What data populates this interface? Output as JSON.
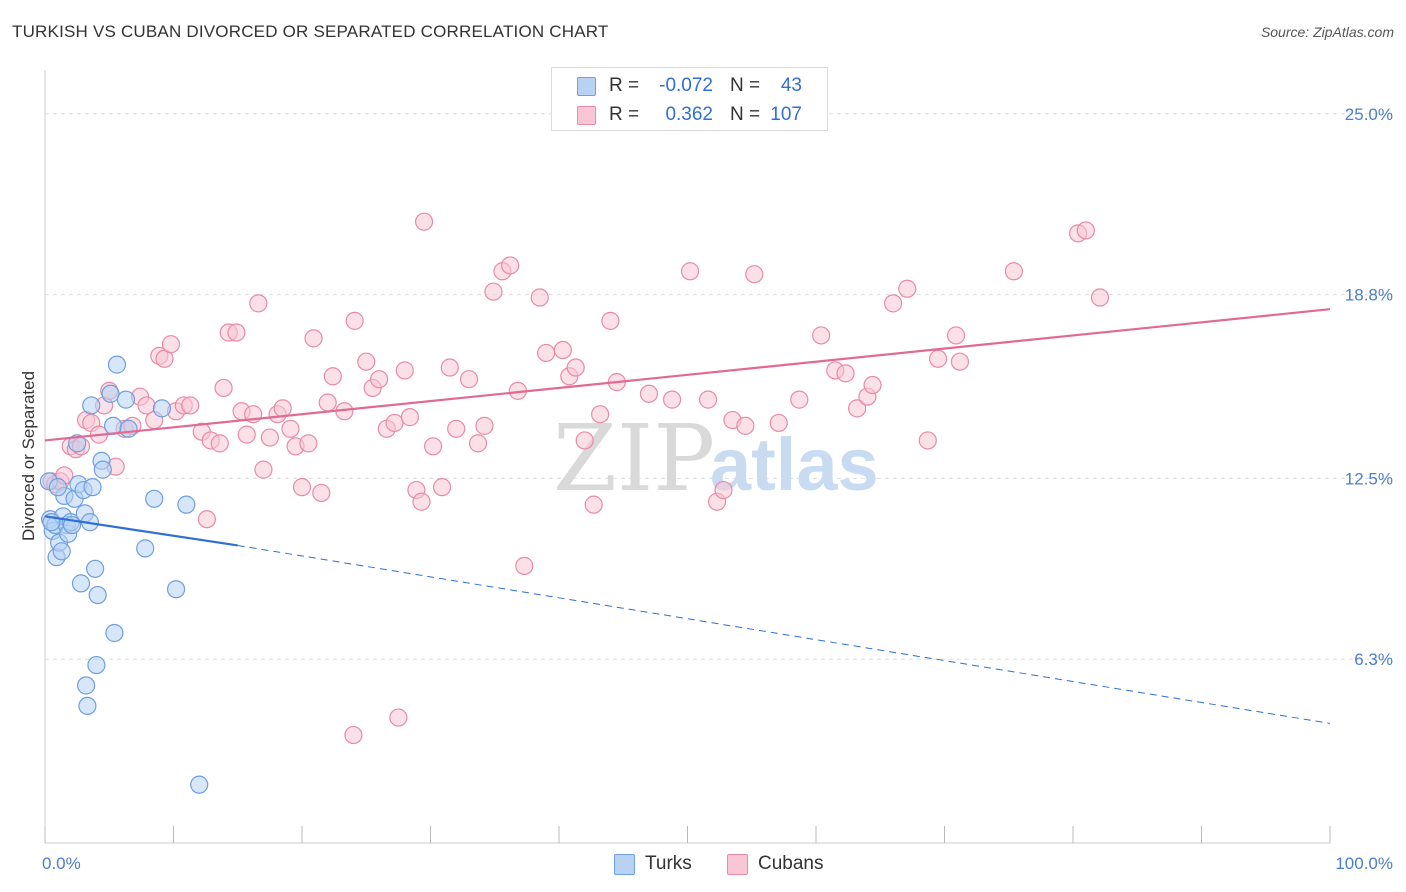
{
  "title": "TURKISH VS CUBAN DIVORCED OR SEPARATED CORRELATION CHART",
  "source": "Source: ZipAtlas.com",
  "watermark": {
    "zip": "ZIP",
    "atlas": "atlas"
  },
  "legend": {
    "rows": [
      {
        "r_label": "R =",
        "r_value": "-0.072",
        "n_label": "N =",
        "n_value": "43",
        "fill": "#b7d2f3",
        "stroke": "#6e9fe0"
      },
      {
        "r_label": "R =",
        "r_value": "0.362",
        "n_label": "N =",
        "n_value": "107",
        "fill": "#f8c6d4",
        "stroke": "#e98aa9"
      }
    ]
  },
  "bottom_legend": [
    {
      "label": "Turks",
      "fill": "#b7d2f3",
      "stroke": "#6e9fe0"
    },
    {
      "label": "Cubans",
      "fill": "#f8c6d4",
      "stroke": "#e98aa9"
    }
  ],
  "chart_data": {
    "type": "scatter",
    "title": "TURKISH VS CUBAN DIVORCED OR SEPARATED CORRELATION CHART",
    "xlabel": "",
    "ylabel": "Divorced or Separated",
    "xlim": [
      0,
      100
    ],
    "ylim": [
      0,
      26.5
    ],
    "x_tick_labels": [
      {
        "value": 0,
        "label": "0.0%"
      },
      {
        "value": 100,
        "label": "100.0%"
      }
    ],
    "y_tick_labels": [
      {
        "value": 6.3,
        "label": "6.3%"
      },
      {
        "value": 12.5,
        "label": "12.5%"
      },
      {
        "value": 18.8,
        "label": "18.8%"
      },
      {
        "value": 25.0,
        "label": "25.0%"
      }
    ],
    "series": [
      {
        "name": "Turks",
        "color": "#2f6fd6",
        "fill": "#b7d2f3",
        "stroke": "#6e9fe0",
        "trend": {
          "x0": 0,
          "y0": 11.2,
          "x1": 15,
          "y1": 10.2,
          "dash_to_x": 100,
          "dash_to_y": 4.1
        },
        "points": [
          [
            0.3,
            12.4
          ],
          [
            0.4,
            11.1
          ],
          [
            0.6,
            10.7
          ],
          [
            0.8,
            10.9
          ],
          [
            0.9,
            9.8
          ],
          [
            1.1,
            10.3
          ],
          [
            1.3,
            10.0
          ],
          [
            1.4,
            11.2
          ],
          [
            1.5,
            11.9
          ],
          [
            1.7,
            10.9
          ],
          [
            1.8,
            10.6
          ],
          [
            2.0,
            11.0
          ],
          [
            2.1,
            10.9
          ],
          [
            2.3,
            11.8
          ],
          [
            2.5,
            13.7
          ],
          [
            2.6,
            12.3
          ],
          [
            2.8,
            8.9
          ],
          [
            3.0,
            12.1
          ],
          [
            3.1,
            11.3
          ],
          [
            3.3,
            4.7
          ],
          [
            3.2,
            5.4
          ],
          [
            3.5,
            11.0
          ],
          [
            3.6,
            15.0
          ],
          [
            3.7,
            12.2
          ],
          [
            3.9,
            9.4
          ],
          [
            4.0,
            6.1
          ],
          [
            4.1,
            8.5
          ],
          [
            4.4,
            13.1
          ],
          [
            4.5,
            12.8
          ],
          [
            5.1,
            15.4
          ],
          [
            5.3,
            14.3
          ],
          [
            5.4,
            7.2
          ],
          [
            5.6,
            16.4
          ],
          [
            6.3,
            15.2
          ],
          [
            6.5,
            14.2
          ],
          [
            7.8,
            10.1
          ],
          [
            8.5,
            11.8
          ],
          [
            9.1,
            14.9
          ],
          [
            10.2,
            8.7
          ],
          [
            11.0,
            11.6
          ],
          [
            12.0,
            2.0
          ],
          [
            1.0,
            12.2
          ],
          [
            0.5,
            11.0
          ]
        ]
      },
      {
        "name": "Cubans",
        "color": "#e06a94",
        "fill": "#f8c6d4",
        "stroke": "#e98aa9",
        "trend": {
          "x0": 0,
          "y0": 13.8,
          "x1": 100,
          "y1": 18.3
        },
        "points": [
          [
            0.5,
            12.4
          ],
          [
            0.8,
            12.3
          ],
          [
            1.2,
            12.4
          ],
          [
            1.5,
            12.6
          ],
          [
            2.0,
            13.6
          ],
          [
            2.4,
            13.5
          ],
          [
            2.8,
            13.6
          ],
          [
            3.2,
            14.5
          ],
          [
            3.6,
            14.4
          ],
          [
            4.2,
            14.0
          ],
          [
            4.6,
            15.0
          ],
          [
            5.0,
            15.5
          ],
          [
            5.5,
            12.9
          ],
          [
            6.2,
            14.2
          ],
          [
            6.8,
            14.3
          ],
          [
            7.4,
            15.3
          ],
          [
            7.9,
            15.0
          ],
          [
            8.5,
            14.5
          ],
          [
            8.9,
            16.7
          ],
          [
            9.3,
            16.6
          ],
          [
            9.8,
            17.1
          ],
          [
            10.2,
            14.8
          ],
          [
            10.8,
            15.0
          ],
          [
            11.3,
            15.0
          ],
          [
            12.2,
            14.1
          ],
          [
            12.6,
            11.1
          ],
          [
            12.9,
            13.8
          ],
          [
            13.6,
            13.7
          ],
          [
            13.9,
            15.6
          ],
          [
            14.3,
            17.5
          ],
          [
            14.9,
            17.5
          ],
          [
            15.3,
            14.8
          ],
          [
            15.7,
            14.0
          ],
          [
            16.2,
            14.7
          ],
          [
            16.6,
            18.5
          ],
          [
            17.0,
            12.8
          ],
          [
            17.5,
            13.9
          ],
          [
            18.1,
            14.7
          ],
          [
            18.5,
            14.9
          ],
          [
            19.1,
            14.2
          ],
          [
            19.5,
            13.6
          ],
          [
            20.0,
            12.2
          ],
          [
            20.5,
            13.7
          ],
          [
            20.9,
            17.3
          ],
          [
            21.5,
            12.0
          ],
          [
            22.0,
            15.1
          ],
          [
            22.4,
            16.0
          ],
          [
            23.3,
            14.8
          ],
          [
            24.1,
            17.9
          ],
          [
            25.0,
            16.5
          ],
          [
            25.5,
            15.6
          ],
          [
            26.0,
            15.9
          ],
          [
            26.6,
            14.2
          ],
          [
            27.2,
            14.4
          ],
          [
            28.0,
            16.2
          ],
          [
            28.4,
            14.6
          ],
          [
            28.9,
            12.1
          ],
          [
            29.3,
            11.7
          ],
          [
            30.2,
            13.6
          ],
          [
            30.9,
            12.2
          ],
          [
            31.5,
            16.3
          ],
          [
            32.0,
            14.2
          ],
          [
            33.0,
            15.9
          ],
          [
            33.7,
            13.7
          ],
          [
            34.2,
            14.3
          ],
          [
            34.9,
            18.9
          ],
          [
            35.6,
            19.6
          ],
          [
            36.2,
            19.8
          ],
          [
            36.8,
            15.5
          ],
          [
            37.3,
            9.5
          ],
          [
            38.5,
            18.7
          ],
          [
            39.0,
            16.8
          ],
          [
            40.3,
            16.9
          ],
          [
            40.8,
            16.0
          ],
          [
            41.3,
            16.3
          ],
          [
            42.0,
            13.8
          ],
          [
            42.7,
            11.6
          ],
          [
            43.2,
            14.7
          ],
          [
            44.0,
            17.9
          ],
          [
            44.5,
            15.8
          ],
          [
            47.0,
            15.4
          ],
          [
            48.8,
            15.2
          ],
          [
            50.2,
            19.6
          ],
          [
            51.6,
            15.2
          ],
          [
            52.3,
            11.7
          ],
          [
            52.8,
            12.1
          ],
          [
            53.5,
            14.5
          ],
          [
            54.5,
            14.3
          ],
          [
            55.2,
            19.5
          ],
          [
            57.1,
            14.4
          ],
          [
            58.7,
            15.2
          ],
          [
            60.4,
            17.4
          ],
          [
            61.5,
            16.2
          ],
          [
            62.3,
            16.1
          ],
          [
            63.2,
            14.9
          ],
          [
            64.0,
            15.3
          ],
          [
            64.4,
            15.7
          ],
          [
            66.0,
            18.5
          ],
          [
            67.1,
            19.0
          ],
          [
            68.7,
            13.8
          ],
          [
            69.5,
            16.6
          ],
          [
            70.9,
            17.4
          ],
          [
            71.2,
            16.5
          ],
          [
            75.4,
            19.6
          ],
          [
            80.4,
            20.9
          ],
          [
            81.0,
            21.0
          ],
          [
            82.1,
            18.7
          ]
        ],
        "special_points": [
          [
            27.5,
            4.3
          ],
          [
            24.0,
            3.7
          ],
          [
            29.5,
            21.3
          ]
        ]
      }
    ]
  }
}
